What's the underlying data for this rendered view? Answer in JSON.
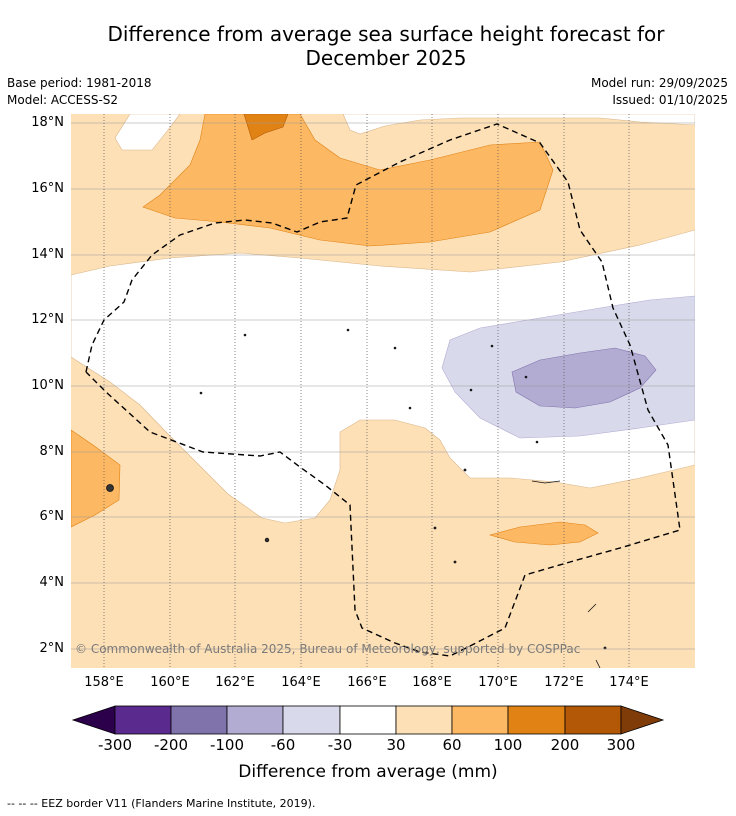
{
  "title_line1": "Difference from average sea surface height forecast for",
  "title_line2": "December 2025",
  "meta": {
    "base_period": "Base period: 1981-2018",
    "model": "Model: ACCESS-S2",
    "model_run": "Model run: 29/09/2025",
    "issued": "Issued: 01/10/2025"
  },
  "lat_labels": [
    "18°N",
    "16°N",
    "14°N",
    "12°N",
    "10°N",
    "8°N",
    "6°N",
    "4°N",
    "2°N"
  ],
  "lon_labels": [
    "158°E",
    "160°E",
    "162°E",
    "164°E",
    "166°E",
    "168°E",
    "170°E",
    "172°E",
    "174°E"
  ],
  "copyright": "© Commonwealth of Australia 2025, Bureau of Meteorology, supported by COSPPac",
  "colorbar": {
    "title": "Difference from average (mm)",
    "ticks": [
      "-300",
      "-200",
      "-100",
      "-60",
      "-30",
      "30",
      "60",
      "100",
      "200",
      "300"
    ],
    "colors": [
      "#2d004b",
      "#5b2a8e",
      "#8073ac",
      "#b2abd2",
      "#d8daeb",
      "#ffffff",
      "#fee0b6",
      "#fdb863",
      "#e08214",
      "#b35806",
      "#7f3b08"
    ]
  },
  "footer": "-- -- -- EEZ border V11 (Flanders Marine Institute, 2019)."
}
